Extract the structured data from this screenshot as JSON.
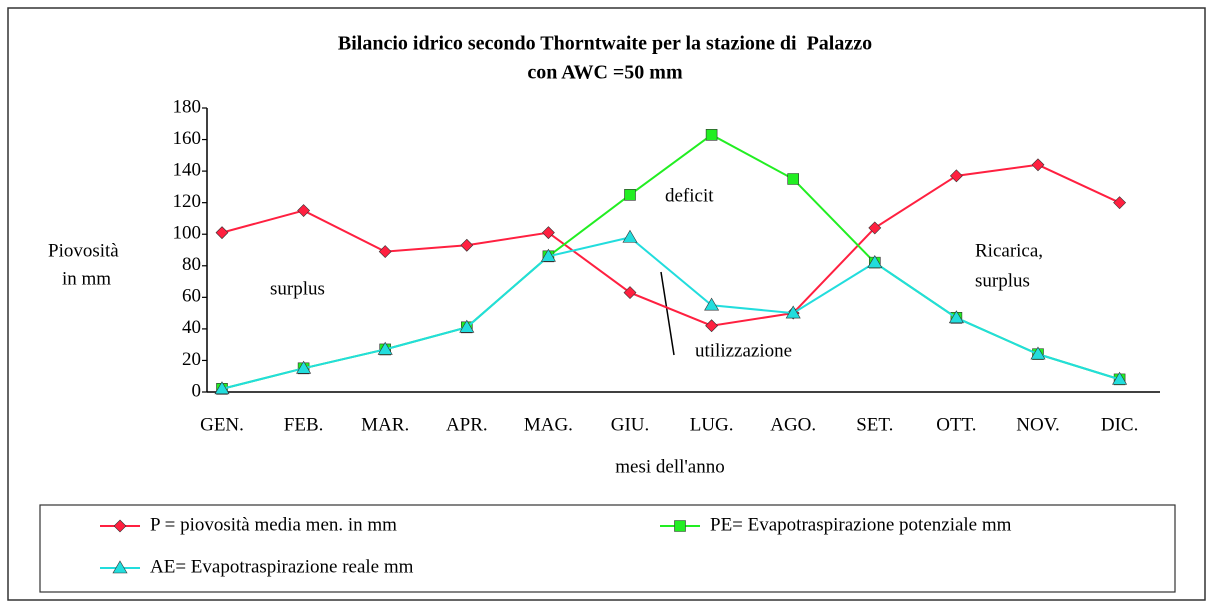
{
  "chart_data": {
    "type": "line",
    "title": [
      "Bilancio idrico secondo Thorntwaite per la stazione di  Palazzo",
      "con AWC =50 mm"
    ],
    "ylabel": [
      "Piovosità",
      "in mm"
    ],
    "xlabel": "mesi dell'anno",
    "categories": [
      "GEN.",
      "FEB.",
      "MAR.",
      "APR.",
      "MAG.",
      "GIU.",
      "LUG.",
      "AGO.",
      "SET.",
      "OTT.",
      "NOV.",
      "DIC."
    ],
    "series": [
      {
        "name": "P = piovosità media men. in mm",
        "color": "#ff2040",
        "marker": "diamond",
        "values": [
          101,
          115,
          89,
          93,
          101,
          63,
          42,
          50,
          104,
          137,
          144,
          120
        ]
      },
      {
        "name": "PE= Evapotraspirazione potenziale mm",
        "color": "#22ee22",
        "marker": "square",
        "values": [
          2,
          15,
          27,
          41,
          86,
          125,
          163,
          135,
          82,
          47,
          24,
          8
        ]
      },
      {
        "name": "AE= Evapotraspirazione reale mm",
        "color": "#22dddd",
        "marker": "triangle",
        "values": [
          2,
          15,
          27,
          41,
          86,
          98,
          55,
          50,
          82,
          47,
          24,
          8
        ]
      }
    ],
    "annotations": [
      "surplus",
      "deficit",
      "utilizzazione",
      "Ricarica,",
      "surplus"
    ],
    "ylim": [
      0,
      180
    ],
    "yticks": [
      0,
      20,
      40,
      60,
      80,
      100,
      120,
      140,
      160,
      180
    ],
    "legend": "bottom"
  }
}
